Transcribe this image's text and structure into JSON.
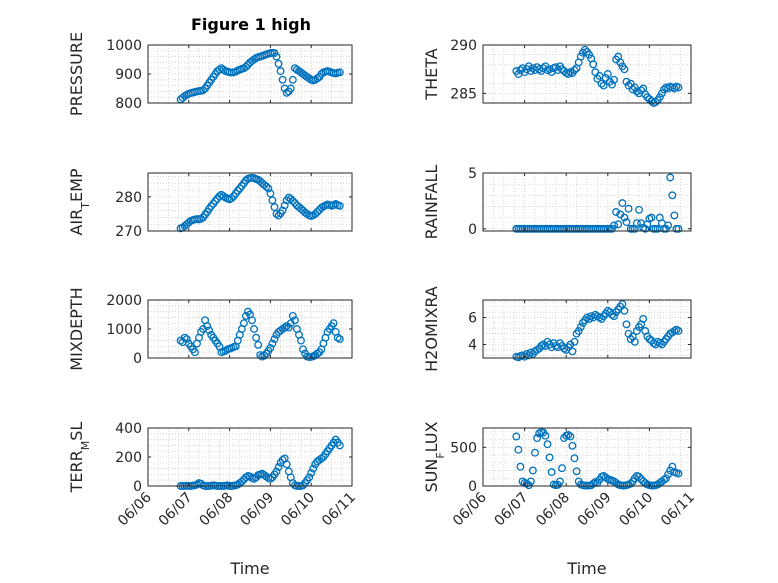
{
  "figure": {
    "title": "Figure 1 high",
    "background": "#ffffff",
    "marker_color": "#0072bd"
  },
  "chart_data": [
    {
      "id": "pressure",
      "type": "scatter",
      "title": "Figure 1 high",
      "ylabel": "PRESSURE",
      "ylim": [
        800,
        1000
      ],
      "yticks": [
        800,
        900,
        1000
      ],
      "xlabel": "",
      "grid": "minor-dotted",
      "x": [
        6.8,
        6.85,
        6.9,
        6.95,
        7.0,
        7.05,
        7.1,
        7.15,
        7.2,
        7.25,
        7.3,
        7.35,
        7.4,
        7.45,
        7.5,
        7.55,
        7.6,
        7.65,
        7.7,
        7.75,
        7.8,
        7.85,
        7.9,
        7.95,
        8.0,
        8.05,
        8.1,
        8.15,
        8.2,
        8.25,
        8.3,
        8.35,
        8.4,
        8.45,
        8.5,
        8.55,
        8.6,
        8.65,
        8.7,
        8.75,
        8.8,
        8.85,
        8.9,
        8.95,
        9.0,
        9.05,
        9.1,
        9.15,
        9.2,
        9.25,
        9.3,
        9.35,
        9.4,
        9.45,
        9.5,
        9.55,
        9.6,
        9.65,
        9.7,
        9.75,
        9.8,
        9.85,
        9.9,
        9.95,
        10.0,
        10.05,
        10.1,
        10.15,
        10.2,
        10.25,
        10.3,
        10.35,
        10.4,
        10.45,
        10.5,
        10.55,
        10.6,
        10.65,
        10.7
      ],
      "y": [
        812,
        818,
        824,
        828,
        832,
        834,
        836,
        838,
        840,
        841,
        842,
        844,
        850,
        860,
        870,
        880,
        890,
        900,
        910,
        915,
        920,
        915,
        910,
        908,
        906,
        905,
        906,
        908,
        912,
        915,
        918,
        920,
        925,
        932,
        940,
        945,
        950,
        955,
        958,
        960,
        962,
        965,
        968,
        970,
        972,
        973,
        972,
        960,
        935,
        910,
        880,
        850,
        835,
        840,
        850,
        880,
        920,
        915,
        910,
        905,
        900,
        895,
        890,
        885,
        880,
        878,
        880,
        885,
        890,
        900,
        905,
        908,
        910,
        908,
        905,
        903,
        902,
        904,
        906
      ]
    },
    {
      "id": "theta",
      "type": "scatter",
      "ylabel": "THETA",
      "ylim": [
        284,
        290
      ],
      "yticks": [
        285,
        290
      ],
      "xlabel": "",
      "grid": "minor-dotted",
      "x": [
        6.8,
        6.85,
        6.9,
        6.95,
        7.0,
        7.05,
        7.1,
        7.15,
        7.2,
        7.25,
        7.3,
        7.35,
        7.4,
        7.45,
        7.5,
        7.55,
        7.6,
        7.65,
        7.7,
        7.75,
        7.8,
        7.85,
        7.9,
        7.95,
        8.0,
        8.05,
        8.1,
        8.15,
        8.2,
        8.25,
        8.3,
        8.35,
        8.4,
        8.45,
        8.5,
        8.55,
        8.6,
        8.65,
        8.7,
        8.75,
        8.8,
        8.85,
        8.9,
        8.95,
        9.0,
        9.05,
        9.1,
        9.15,
        9.2,
        9.25,
        9.3,
        9.35,
        9.4,
        9.45,
        9.5,
        9.55,
        9.6,
        9.65,
        9.7,
        9.75,
        9.8,
        9.85,
        9.9,
        9.95,
        10.0,
        10.05,
        10.1,
        10.15,
        10.2,
        10.25,
        10.3,
        10.35,
        10.4,
        10.45,
        10.5,
        10.55,
        10.6,
        10.65,
        10.7
      ],
      "y": [
        287.3,
        287.0,
        287.4,
        287.6,
        287.2,
        287.5,
        287.8,
        287.3,
        287.6,
        287.4,
        287.7,
        287.5,
        287.3,
        287.6,
        287.8,
        287.4,
        287.5,
        287.2,
        287.6,
        287.7,
        287.4,
        287.8,
        287.5,
        287.3,
        287.1,
        287.0,
        287.2,
        287.1,
        287.4,
        287.6,
        288.2,
        288.8,
        289.2,
        289.5,
        289.3,
        289.0,
        288.6,
        288.0,
        287.2,
        286.5,
        286.8,
        286.0,
        285.8,
        286.6,
        287.0,
        286.2,
        285.9,
        286.4,
        288.5,
        288.8,
        288.2,
        287.8,
        287.5,
        286.2,
        285.8,
        286.0,
        285.4,
        285.6,
        285.2,
        285.0,
        285.3,
        285.5,
        284.9,
        284.6,
        284.4,
        284.2,
        284.0,
        284.1,
        284.3,
        284.6,
        285.0,
        285.4,
        285.6,
        285.5,
        285.7,
        285.6,
        285.5,
        285.7,
        285.6
      ]
    },
    {
      "id": "air_temp",
      "type": "scatter",
      "ylabel": "AIR_TEMP",
      "ylim": [
        270,
        287
      ],
      "yticks": [
        270,
        280
      ],
      "xlabel": "",
      "grid": "minor-dotted",
      "x": [
        6.8,
        6.85,
        6.9,
        6.95,
        7.0,
        7.05,
        7.1,
        7.15,
        7.2,
        7.25,
        7.3,
        7.35,
        7.4,
        7.45,
        7.5,
        7.55,
        7.6,
        7.65,
        7.7,
        7.75,
        7.8,
        7.85,
        7.9,
        7.95,
        8.0,
        8.05,
        8.1,
        8.15,
        8.2,
        8.25,
        8.3,
        8.35,
        8.4,
        8.45,
        8.5,
        8.55,
        8.6,
        8.65,
        8.7,
        8.75,
        8.8,
        8.85,
        8.9,
        8.95,
        9.0,
        9.05,
        9.1,
        9.15,
        9.2,
        9.25,
        9.3,
        9.35,
        9.4,
        9.45,
        9.5,
        9.55,
        9.6,
        9.65,
        9.7,
        9.75,
        9.8,
        9.85,
        9.9,
        9.95,
        10.0,
        10.05,
        10.1,
        10.15,
        10.2,
        10.25,
        10.3,
        10.35,
        10.4,
        10.45,
        10.5,
        10.55,
        10.6,
        10.65,
        10.7
      ],
      "y": [
        270.8,
        271.0,
        271.5,
        272.0,
        272.5,
        273.0,
        273.2,
        273.4,
        273.5,
        273.4,
        273.6,
        274.0,
        274.8,
        275.6,
        276.5,
        277.3,
        278.0,
        278.8,
        279.5,
        280.2,
        280.6,
        280.2,
        279.8,
        279.5,
        279.3,
        279.6,
        280.2,
        281.0,
        281.8,
        282.5,
        283.2,
        284.0,
        284.8,
        285.3,
        285.5,
        285.6,
        285.5,
        285.2,
        285.0,
        284.6,
        284.0,
        283.5,
        283.0,
        282.5,
        281.0,
        279.0,
        277.0,
        275.0,
        274.5,
        275.2,
        276.0,
        277.5,
        279.0,
        279.8,
        279.4,
        278.8,
        278.2,
        277.5,
        277.0,
        276.5,
        276.0,
        275.4,
        275.0,
        274.6,
        274.4,
        274.6,
        275.0,
        275.6,
        276.2,
        276.8,
        277.2,
        277.5,
        277.8,
        277.6,
        277.4,
        277.6,
        277.9,
        277.6,
        277.4
      ]
    },
    {
      "id": "rainfall",
      "type": "scatter",
      "ylabel": "RAINFALL",
      "ylim": [
        -0.2,
        5
      ],
      "yticks": [
        0,
        5
      ],
      "xlabel": "",
      "grid": "minor-dotted",
      "x": [
        6.8,
        6.85,
        6.9,
        6.95,
        7.0,
        7.05,
        7.1,
        7.15,
        7.2,
        7.25,
        7.3,
        7.35,
        7.4,
        7.45,
        7.5,
        7.55,
        7.6,
        7.65,
        7.7,
        7.75,
        7.8,
        7.85,
        7.9,
        7.95,
        8.0,
        8.05,
        8.1,
        8.15,
        8.2,
        8.25,
        8.3,
        8.35,
        8.4,
        8.45,
        8.5,
        8.55,
        8.6,
        8.65,
        8.7,
        8.75,
        8.8,
        8.85,
        8.9,
        8.95,
        9.0,
        9.05,
        9.1,
        9.15,
        9.2,
        9.25,
        9.3,
        9.35,
        9.4,
        9.45,
        9.5,
        9.55,
        9.6,
        9.65,
        9.7,
        9.75,
        9.8,
        9.85,
        9.9,
        9.95,
        10.0,
        10.05,
        10.1,
        10.15,
        10.2,
        10.25,
        10.3,
        10.35,
        10.4,
        10.45,
        10.5,
        10.55,
        10.6,
        10.65,
        10.7
      ],
      "y": [
        0,
        0,
        0,
        0,
        0,
        0,
        0,
        0,
        0,
        0,
        0,
        0,
        0,
        0,
        0,
        0,
        0,
        0,
        0,
        0,
        0,
        0,
        0,
        0,
        0,
        0,
        0,
        0,
        0,
        0,
        0,
        0,
        0,
        0,
        0,
        0,
        0,
        0,
        0,
        0,
        0,
        0,
        0,
        0,
        0,
        0,
        0,
        0.3,
        1.5,
        0.4,
        1.3,
        2.3,
        1.0,
        0.6,
        1.8,
        0,
        0,
        0,
        0.5,
        1.7,
        0.5,
        0.1,
        0,
        0.4,
        0.9,
        1.0,
        0,
        0,
        0,
        1.0,
        0.5,
        0,
        0,
        0.3,
        4.6,
        3.0,
        1.2,
        0,
        0
      ]
    },
    {
      "id": "mixdepth",
      "type": "scatter",
      "ylabel": "MIXDEPTH",
      "ylim": [
        0,
        2000
      ],
      "yticks": [
        0,
        1000,
        2000
      ],
      "xlabel": "",
      "grid": "minor-dotted",
      "x": [
        6.8,
        6.85,
        6.9,
        6.95,
        7.0,
        7.05,
        7.1,
        7.15,
        7.2,
        7.25,
        7.3,
        7.35,
        7.4,
        7.45,
        7.5,
        7.55,
        7.6,
        7.65,
        7.7,
        7.75,
        7.8,
        7.85,
        7.9,
        7.95,
        8.0,
        8.05,
        8.1,
        8.15,
        8.2,
        8.25,
        8.3,
        8.35,
        8.4,
        8.45,
        8.5,
        8.55,
        8.6,
        8.65,
        8.7,
        8.75,
        8.8,
        8.85,
        8.9,
        8.95,
        9.0,
        9.05,
        9.1,
        9.15,
        9.2,
        9.25,
        9.3,
        9.35,
        9.4,
        9.45,
        9.5,
        9.55,
        9.6,
        9.65,
        9.7,
        9.75,
        9.8,
        9.85,
        9.9,
        9.95,
        10.0,
        10.05,
        10.1,
        10.15,
        10.2,
        10.25,
        10.3,
        10.35,
        10.4,
        10.45,
        10.5,
        10.55,
        10.6,
        10.65,
        10.7
      ],
      "y": [
        600,
        550,
        700,
        650,
        500,
        400,
        300,
        200,
        500,
        700,
        900,
        1000,
        1300,
        1100,
        950,
        800,
        700,
        600,
        500,
        400,
        200,
        220,
        250,
        300,
        320,
        350,
        380,
        400,
        600,
        800,
        1000,
        1200,
        1450,
        1600,
        1500,
        1300,
        1000,
        700,
        450,
        100,
        50,
        80,
        150,
        250,
        350,
        500,
        650,
        800,
        900,
        950,
        1000,
        1050,
        1100,
        1050,
        1200,
        1450,
        1300,
        1000,
        800,
        600,
        300,
        150,
        50,
        30,
        40,
        60,
        100,
        150,
        200,
        300,
        500,
        700,
        900,
        1000,
        1100,
        1200,
        900,
        700,
        650
      ]
    },
    {
      "id": "h2omixra",
      "type": "scatter",
      "ylabel": "H2OMIXRA",
      "ylim": [
        3,
        7.3
      ],
      "yticks": [
        4,
        6
      ],
      "xlabel": "",
      "grid": "minor-dotted",
      "x": [
        6.8,
        6.85,
        6.9,
        6.95,
        7.0,
        7.05,
        7.1,
        7.15,
        7.2,
        7.25,
        7.3,
        7.35,
        7.4,
        7.45,
        7.5,
        7.55,
        7.6,
        7.65,
        7.7,
        7.75,
        7.8,
        7.85,
        7.9,
        7.95,
        8.0,
        8.05,
        8.1,
        8.15,
        8.2,
        8.25,
        8.3,
        8.35,
        8.4,
        8.45,
        8.5,
        8.55,
        8.6,
        8.65,
        8.7,
        8.75,
        8.8,
        8.85,
        8.9,
        8.95,
        9.0,
        9.05,
        9.1,
        9.15,
        9.2,
        9.25,
        9.3,
        9.35,
        9.4,
        9.45,
        9.5,
        9.55,
        9.6,
        9.65,
        9.7,
        9.75,
        9.8,
        9.85,
        9.9,
        9.95,
        10.0,
        10.05,
        10.1,
        10.15,
        10.2,
        10.25,
        10.3,
        10.35,
        10.4,
        10.45,
        10.5,
        10.55,
        10.6,
        10.65,
        10.7
      ],
      "y": [
        3.1,
        3.05,
        3.15,
        3.2,
        3.1,
        3.3,
        3.2,
        3.4,
        3.3,
        3.5,
        3.6,
        3.7,
        3.9,
        4.0,
        3.9,
        4.2,
        4.0,
        3.8,
        4.1,
        3.9,
        3.8,
        4.1,
        3.9,
        3.7,
        3.6,
        3.8,
        4.0,
        3.5,
        4.2,
        4.8,
        5.0,
        5.3,
        5.6,
        5.8,
        6.0,
        5.9,
        6.1,
        6.0,
        6.2,
        6.1,
        6.0,
        5.9,
        6.1,
        6.3,
        6.5,
        6.4,
        6.2,
        6.1,
        6.4,
        6.6,
        6.8,
        7.0,
        6.5,
        5.5,
        4.8,
        4.4,
        4.6,
        4.2,
        5.0,
        5.3,
        5.5,
        5.9,
        5.0,
        4.6,
        4.4,
        4.3,
        4.1,
        4.0,
        4.2,
        4.1,
        4.0,
        4.2,
        4.4,
        4.6,
        4.8,
        4.9,
        5.0,
        5.1,
        5.0
      ]
    },
    {
      "id": "terr_msl",
      "type": "scatter",
      "ylabel": "TERR_MSL",
      "ylim": [
        0,
        400
      ],
      "yticks": [
        0,
        200,
        400
      ],
      "xlabel": "Time",
      "grid": "minor-dotted",
      "xticks": [
        "06/06",
        "06/07",
        "06/08",
        "06/09",
        "06/10",
        "06/11"
      ],
      "xlim": [
        6,
        11
      ],
      "x": [
        6.8,
        6.85,
        6.9,
        6.95,
        7.0,
        7.05,
        7.1,
        7.15,
        7.2,
        7.25,
        7.3,
        7.35,
        7.4,
        7.45,
        7.5,
        7.55,
        7.6,
        7.65,
        7.7,
        7.75,
        7.8,
        7.85,
        7.9,
        7.95,
        8.0,
        8.05,
        8.1,
        8.15,
        8.2,
        8.25,
        8.3,
        8.35,
        8.4,
        8.45,
        8.5,
        8.55,
        8.6,
        8.65,
        8.7,
        8.75,
        8.8,
        8.85,
        8.9,
        8.95,
        9.0,
        9.05,
        9.1,
        9.15,
        9.2,
        9.25,
        9.3,
        9.35,
        9.4,
        9.45,
        9.5,
        9.55,
        9.6,
        9.65,
        9.7,
        9.75,
        9.8,
        9.85,
        9.9,
        9.95,
        10.0,
        10.05,
        10.1,
        10.15,
        10.2,
        10.25,
        10.3,
        10.35,
        10.4,
        10.45,
        10.5,
        10.55,
        10.6,
        10.65,
        10.7
      ],
      "y": [
        0,
        0,
        0,
        2,
        0,
        0,
        3,
        5,
        10,
        20,
        15,
        5,
        0,
        0,
        0,
        2,
        5,
        3,
        0,
        0,
        0,
        0,
        2,
        5,
        0,
        0,
        2,
        5,
        10,
        20,
        30,
        45,
        60,
        70,
        65,
        55,
        50,
        60,
        75,
        80,
        85,
        75,
        65,
        55,
        50,
        60,
        80,
        100,
        130,
        160,
        180,
        190,
        150,
        100,
        60,
        20,
        5,
        0,
        0,
        0,
        5,
        20,
        40,
        60,
        90,
        120,
        150,
        170,
        180,
        190,
        200,
        220,
        240,
        260,
        280,
        300,
        320,
        300,
        280
      ]
    },
    {
      "id": "sun_flux",
      "type": "scatter",
      "ylabel": "SUN_FLUX",
      "ylim": [
        0,
        750
      ],
      "yticks": [
        0,
        500
      ],
      "xlabel": "Time",
      "grid": "minor-dotted",
      "xticks": [
        "06/06",
        "06/07",
        "06/08",
        "06/09",
        "06/10",
        "06/11"
      ],
      "xlim": [
        6,
        11
      ],
      "x": [
        6.8,
        6.85,
        6.9,
        6.95,
        7.0,
        7.05,
        7.1,
        7.15,
        7.2,
        7.25,
        7.3,
        7.35,
        7.4,
        7.45,
        7.5,
        7.55,
        7.6,
        7.65,
        7.7,
        7.75,
        7.8,
        7.85,
        7.9,
        7.95,
        8.0,
        8.05,
        8.1,
        8.15,
        8.2,
        8.25,
        8.3,
        8.35,
        8.4,
        8.45,
        8.5,
        8.55,
        8.6,
        8.65,
        8.7,
        8.75,
        8.8,
        8.85,
        8.9,
        8.95,
        9.0,
        9.05,
        9.1,
        9.15,
        9.2,
        9.25,
        9.3,
        9.35,
        9.4,
        9.45,
        9.5,
        9.55,
        9.6,
        9.65,
        9.7,
        9.75,
        9.8,
        9.85,
        9.9,
        9.95,
        10.0,
        10.05,
        10.1,
        10.15,
        10.2,
        10.25,
        10.3,
        10.35,
        10.4,
        10.45,
        10.5,
        10.55,
        10.6,
        10.65,
        10.7
      ],
      "y": [
        640,
        470,
        250,
        60,
        40,
        30,
        10,
        60,
        200,
        430,
        620,
        680,
        700,
        690,
        650,
        540,
        370,
        180,
        20,
        10,
        15,
        60,
        230,
        620,
        650,
        660,
        640,
        520,
        360,
        190,
        60,
        20,
        10,
        5,
        5,
        5,
        10,
        30,
        50,
        40,
        80,
        120,
        130,
        110,
        90,
        80,
        70,
        60,
        40,
        20,
        10,
        5,
        5,
        10,
        20,
        30,
        60,
        100,
        130,
        120,
        90,
        60,
        40,
        20,
        10,
        5,
        5,
        10,
        20,
        40,
        60,
        80,
        100,
        150,
        200,
        250,
        180,
        170,
        160
      ]
    }
  ]
}
